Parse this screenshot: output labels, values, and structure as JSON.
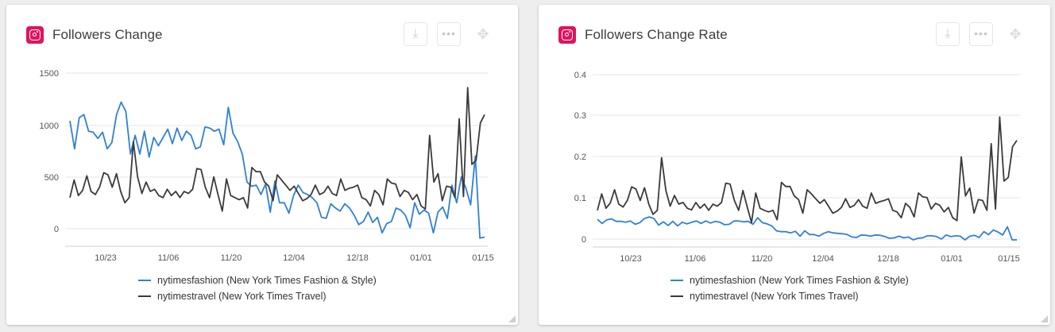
{
  "colors": {
    "series1": "#2f80d8",
    "series2": "#3a3a3a",
    "brand": "#e4125e",
    "grid": "#e6e6e6"
  },
  "icons": {
    "card_icon": "instagram-icon",
    "download": "download-icon",
    "more": "more-icon",
    "move": "move-icon"
  },
  "cards": [
    {
      "title": "Followers Change",
      "legend": [
        "nytimesfashion (New York Times Fashion & Style)",
        "nytimestravel (New York Times Travel)"
      ]
    },
    {
      "title": "Followers Change Rate",
      "legend": [
        "nytimesfashion (New York Times Fashion & Style)",
        "nytimestravel (New York Times Travel)"
      ]
    }
  ],
  "chart_data": [
    {
      "type": "line",
      "title": "Followers Change",
      "x_ticks": [
        "10/23",
        "11/06",
        "11/20",
        "12/04",
        "12/18",
        "01/01",
        "01/15"
      ],
      "y_ticks": [
        "1500",
        "1000",
        "500",
        "0"
      ],
      "ylim": [
        -150,
        1500
      ],
      "grid": true,
      "legend_position": "bottom",
      "series": [
        {
          "name": "nytimesfashion (New York Times Fashion & Style)",
          "values": [
            1040,
            770,
            1070,
            1100,
            940,
            930,
            870,
            930,
            770,
            830,
            1100,
            1220,
            1130,
            720,
            900,
            720,
            940,
            690,
            880,
            800,
            880,
            960,
            820,
            970,
            850,
            940,
            900,
            770,
            790,
            980,
            970,
            940,
            960,
            810,
            1170,
            920,
            840,
            720,
            450,
            410,
            420,
            330,
            430,
            160,
            460,
            250,
            250,
            150,
            320,
            420,
            350,
            330,
            300,
            250,
            110,
            100,
            240,
            200,
            170,
            240,
            200,
            130,
            40,
            70,
            160,
            60,
            110,
            -40,
            50,
            70,
            200,
            180,
            130,
            10,
            250,
            140,
            180,
            150,
            -40,
            160,
            210,
            100,
            420,
            250,
            500,
            390,
            230,
            700,
            -90,
            -80
          ]
        },
        {
          "name": "nytimestravel (New York Times Travel)",
          "values": [
            300,
            470,
            320,
            370,
            510,
            360,
            330,
            400,
            540,
            520,
            400,
            530,
            360,
            250,
            300,
            840,
            500,
            340,
            450,
            360,
            380,
            320,
            300,
            380,
            320,
            360,
            300,
            360,
            340,
            380,
            580,
            570,
            400,
            300,
            500,
            330,
            170,
            480,
            320,
            300,
            280,
            300,
            200,
            590,
            550,
            550,
            450,
            410,
            270,
            520,
            470,
            420,
            370,
            410,
            340,
            270,
            290,
            330,
            420,
            330,
            350,
            410,
            340,
            320,
            480,
            370,
            390,
            400,
            420,
            300,
            280,
            220,
            370,
            330,
            230,
            480,
            440,
            430,
            310,
            370,
            350,
            280,
            330,
            220,
            190,
            900,
            450,
            530,
            270,
            410,
            400,
            300,
            1060,
            310,
            1360,
            620,
            660,
            1020,
            1100
          ]
        }
      ]
    },
    {
      "type": "line",
      "title": "Followers Change Rate",
      "x_ticks": [
        "10/23",
        "11/06",
        "11/20",
        "12/04",
        "12/18",
        "01/01",
        "01/15"
      ],
      "y_ticks": [
        "0.4",
        "0.3",
        "0.2",
        "0.1",
        "0"
      ],
      "ylim": [
        -0.02,
        0.4
      ],
      "grid": true,
      "legend_position": "bottom",
      "series": [
        {
          "name": "nytimesfashion (New York Times Fashion & Style)",
          "values": [
            0.048,
            0.038,
            0.047,
            0.049,
            0.043,
            0.043,
            0.041,
            0.044,
            0.036,
            0.04,
            0.05,
            0.054,
            0.05,
            0.034,
            0.042,
            0.033,
            0.043,
            0.032,
            0.041,
            0.037,
            0.041,
            0.044,
            0.038,
            0.044,
            0.039,
            0.043,
            0.041,
            0.035,
            0.036,
            0.044,
            0.044,
            0.042,
            0.043,
            0.036,
            0.052,
            0.04,
            0.037,
            0.032,
            0.02,
            0.018,
            0.018,
            0.015,
            0.019,
            0.007,
            0.02,
            0.011,
            0.011,
            0.007,
            0.014,
            0.018,
            0.015,
            0.014,
            0.013,
            0.011,
            0.005,
            0.004,
            0.01,
            0.009,
            0.007,
            0.01,
            0.009,
            0.006,
            0.002,
            0.003,
            0.007,
            0.003,
            0.005,
            -0.002,
            0.002,
            0.003,
            0.008,
            0.008,
            0.006,
            0.0,
            0.01,
            0.006,
            0.008,
            0.007,
            -0.002,
            0.007,
            0.009,
            0.004,
            0.018,
            0.011,
            0.022,
            0.017,
            0.01,
            0.03,
            -0.002,
            -0.002
          ]
        },
        {
          "name": "nytimestravel (New York Times Travel)",
          "values": [
            0.07,
            0.11,
            0.075,
            0.088,
            0.12,
            0.085,
            0.078,
            0.094,
            0.127,
            0.122,
            0.094,
            0.125,
            0.085,
            0.06,
            0.07,
            0.198,
            0.118,
            0.08,
            0.106,
            0.085,
            0.089,
            0.075,
            0.071,
            0.089,
            0.075,
            0.085,
            0.07,
            0.085,
            0.08,
            0.089,
            0.136,
            0.134,
            0.094,
            0.07,
            0.118,
            0.078,
            0.04,
            0.112,
            0.075,
            0.07,
            0.066,
            0.07,
            0.047,
            0.138,
            0.128,
            0.128,
            0.105,
            0.096,
            0.063,
            0.12,
            0.11,
            0.098,
            0.087,
            0.096,
            0.08,
            0.063,
            0.068,
            0.077,
            0.098,
            0.077,
            0.082,
            0.096,
            0.08,
            0.075,
            0.112,
            0.087,
            0.091,
            0.094,
            0.098,
            0.07,
            0.066,
            0.052,
            0.087,
            0.077,
            0.054,
            0.112,
            0.103,
            0.101,
            0.073,
            0.087,
            0.082,
            0.066,
            0.077,
            0.052,
            0.045,
            0.2,
            0.105,
            0.124,
            0.063,
            0.096,
            0.094,
            0.07,
            0.232,
            0.073,
            0.297,
            0.141,
            0.15,
            0.225,
            0.24
          ]
        }
      ]
    }
  ]
}
